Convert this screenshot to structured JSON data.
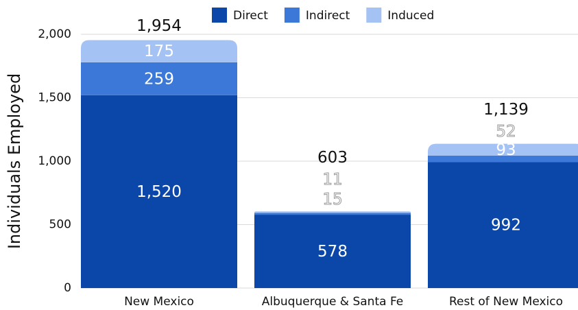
{
  "chart_data": {
    "type": "stacked_bar",
    "y_label": "Individuals Employed",
    "categories": [
      "New Mexico",
      "Albuquerque & Santa Fe",
      "Rest of New Mexico"
    ],
    "series": [
      {
        "name": "Direct",
        "color": "#0a47a9",
        "values": [
          1520,
          578,
          992
        ]
      },
      {
        "name": "Indirect",
        "color": "#3c78d8",
        "values": [
          259,
          15,
          52
        ]
      },
      {
        "name": "Induced",
        "color": "#a4c2f4",
        "values": [
          175,
          11,
          93
        ]
      }
    ],
    "totals": [
      1954,
      603,
      1139
    ],
    "total_labels": [
      "1,954",
      "603",
      "1,139"
    ],
    "value_labels": [
      [
        "1,520",
        "578",
        "992"
      ],
      [
        "259",
        "15",
        "52"
      ],
      [
        "175",
        "11",
        "93"
      ]
    ],
    "ylim": [
      0,
      2000
    ],
    "yticks": [
      0,
      500,
      {
        "value": 1000,
        "label": "1,000"
      },
      {
        "value": 1500,
        "label": "1,500"
      },
      {
        "value": 2000,
        "label": "2,000"
      }
    ],
    "grid": true,
    "legend": "top"
  }
}
